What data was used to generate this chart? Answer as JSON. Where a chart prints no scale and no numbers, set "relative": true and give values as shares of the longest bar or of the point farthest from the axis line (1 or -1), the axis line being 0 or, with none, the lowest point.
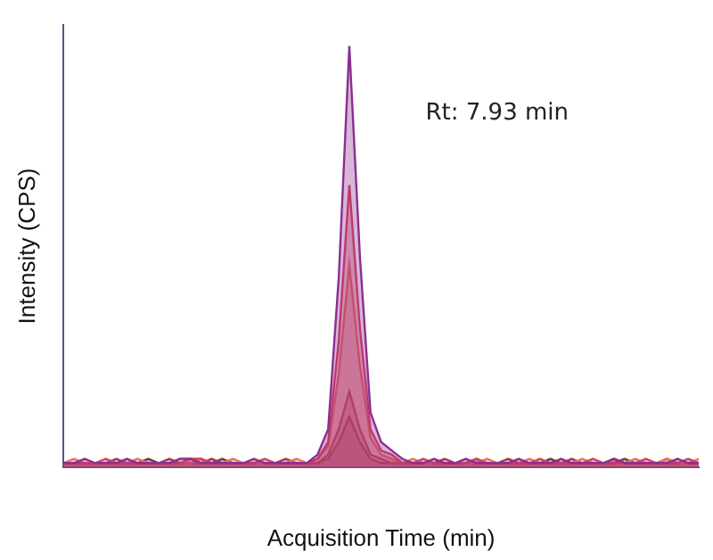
{
  "chart_data": {
    "type": "area",
    "xlabel": "Acquisition Time (min)",
    "ylabel": "Intensity (CPS)",
    "relative": true,
    "grid": false,
    "legend": false,
    "annotations": [
      "Rt: 7.93 min"
    ],
    "categories": [
      null,
      null,
      null,
      null,
      null,
      null,
      null,
      null,
      null,
      null,
      null,
      null,
      null,
      null,
      null,
      null,
      null,
      null,
      null,
      null,
      null,
      null,
      null,
      null,
      null,
      null,
      null,
      null,
      null,
      null,
      null,
      null,
      null,
      null,
      null,
      null,
      null,
      null,
      null,
      null,
      null,
      null,
      null,
      null,
      null,
      null,
      null,
      null,
      null,
      null,
      null,
      null,
      null,
      null,
      null,
      null,
      null,
      null,
      null,
      null,
      null
    ],
    "series": [
      {
        "color": "#8b2f8f",
        "values": [
          0.01,
          0.01,
          0.02,
          0.01,
          0.01,
          0.01,
          0.02,
          0.01,
          0.01,
          0.01,
          0.01,
          0.02,
          0.02,
          0.01,
          0.01,
          0.01,
          0.01,
          0.01,
          0.02,
          0.01,
          0.01,
          0.01,
          0.01,
          0.01,
          0.03,
          0.09,
          0.45,
          1,
          0.5,
          0.13,
          0.06,
          0.04,
          0.02,
          0.01,
          0.01,
          0.02,
          0.01,
          0.01,
          0.02,
          0.01,
          0.01,
          0.01,
          0.01,
          0.02,
          0.01,
          0.01,
          0.01,
          0.02,
          0.01,
          0.01,
          0.01,
          0.01,
          0.02,
          0.01,
          0.01,
          0.01,
          0.01,
          0.01,
          0.02,
          0.01,
          0.01
        ]
      },
      {
        "color": "#d9405a",
        "values": [
          0.01,
          0.01,
          0.01,
          0.01,
          0.02,
          0.01,
          0.01,
          0.01,
          0.01,
          0.01,
          0.01,
          0.01,
          0.02,
          0.02,
          0.01,
          0.01,
          0.01,
          0.01,
          0.01,
          0.02,
          0.01,
          0.01,
          0.01,
          0.01,
          0.02,
          0.06,
          0.3,
          0.67,
          0.33,
          0.09,
          0.04,
          0.03,
          0.01,
          0.01,
          0.02,
          0.01,
          0.01,
          0.01,
          0.01,
          0.02,
          0.01,
          0.01,
          0.01,
          0.01,
          0.01,
          0.02,
          0.01,
          0.01,
          0.01,
          0.01,
          0.02,
          0.01,
          0.01,
          0.01,
          0.01,
          0.02,
          0.01,
          0.01,
          0.01,
          0.02,
          0.01
        ]
      },
      {
        "color": "#e8745e",
        "values": [
          0.01,
          0.02,
          0.01,
          0.01,
          0.01,
          0.01,
          0.01,
          0.02,
          0.01,
          0.01,
          0.01,
          0.01,
          0.01,
          0.02,
          0.01,
          0.01,
          0.02,
          0.01,
          0.01,
          0.01,
          0.01,
          0.01,
          0.02,
          0.01,
          0.02,
          0.05,
          0.22,
          0.48,
          0.24,
          0.07,
          0.03,
          0.02,
          0.01,
          0.02,
          0.01,
          0.01,
          0.01,
          0.01,
          0.01,
          0.01,
          0.02,
          0.01,
          0.01,
          0.01,
          0.02,
          0.01,
          0.01,
          0.01,
          0.01,
          0.02,
          0.01,
          0.01,
          0.01,
          0.01,
          0.02,
          0.01,
          0.01,
          0.02,
          0.01,
          0.01,
          0.02
        ]
      },
      {
        "color": "#a63a4e",
        "values": [
          0.01,
          0.01,
          0.01,
          0.01,
          0.01,
          0.02,
          0.01,
          0.01,
          0.01,
          0.01,
          0.02,
          0.01,
          0.01,
          0.01,
          0.02,
          0.01,
          0.01,
          0.01,
          0.01,
          0.01,
          0.01,
          0.02,
          0.01,
          0.01,
          0.01,
          0.03,
          0.09,
          0.18,
          0.09,
          0.03,
          0.02,
          0.01,
          0.01,
          0.01,
          0.01,
          0.01,
          0.02,
          0.01,
          0.01,
          0.01,
          0.01,
          0.01,
          0.02,
          0.01,
          0.01,
          0.01,
          0.01,
          0.01,
          0.02,
          0.01,
          0.01,
          0.01,
          0.02,
          0.01,
          0.01,
          0.01,
          0.01,
          0.02,
          0.01,
          0.01,
          0.01
        ]
      },
      {
        "color": "#7a3a3a",
        "values": [
          0.01,
          0.01,
          0.01,
          0.01,
          0.01,
          0.01,
          0.01,
          0.01,
          0.02,
          0.01,
          0.01,
          0.01,
          0.01,
          0.01,
          0.01,
          0.02,
          0.01,
          0.01,
          0.01,
          0.01,
          0.01,
          0.01,
          0.01,
          0.01,
          0.01,
          0.02,
          0.06,
          0.12,
          0.06,
          0.02,
          0.01,
          0.01,
          0.01,
          0.01,
          0.01,
          0.01,
          0.01,
          0.01,
          0.01,
          0.02,
          0.01,
          0.01,
          0.01,
          0.01,
          0.01,
          0.01,
          0.02,
          0.01,
          0.01,
          0.01,
          0.01,
          0.01,
          0.01,
          0.02,
          0.01,
          0.01,
          0.01,
          0.01,
          0.01,
          0.01,
          0.01
        ]
      }
    ]
  }
}
